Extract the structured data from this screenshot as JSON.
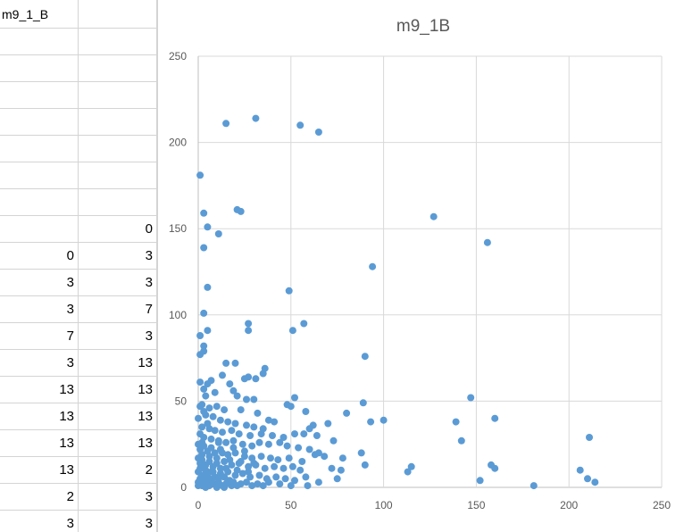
{
  "sheet": {
    "header_a": "m9_1_B",
    "header_b": "",
    "rows": [
      {
        "a": "",
        "b": ""
      },
      {
        "a": "",
        "b": ""
      },
      {
        "a": "",
        "b": ""
      },
      {
        "a": "",
        "b": ""
      },
      {
        "a": "",
        "b": ""
      },
      {
        "a": "",
        "b": ""
      },
      {
        "a": "",
        "b": ""
      },
      {
        "a": "",
        "b": "0"
      },
      {
        "a": "0",
        "b": "3"
      },
      {
        "a": "3",
        "b": "3"
      },
      {
        "a": "3",
        "b": "7"
      },
      {
        "a": "7",
        "b": "3"
      },
      {
        "a": "3",
        "b": "13"
      },
      {
        "a": "13",
        "b": "13"
      },
      {
        "a": "13",
        "b": "13"
      },
      {
        "a": "13",
        "b": "13"
      },
      {
        "a": "13",
        "b": "2"
      },
      {
        "a": "2",
        "b": "3"
      },
      {
        "a": "3",
        "b": "3"
      }
    ]
  },
  "chart_data": {
    "type": "scatter",
    "title": "m9_1B",
    "xlabel": "",
    "ylabel": "",
    "xlim": [
      0,
      250
    ],
    "ylim": [
      0,
      250
    ],
    "xticks": [
      0,
      50,
      100,
      150,
      200,
      250
    ],
    "yticks": [
      0,
      50,
      100,
      150,
      200,
      250
    ],
    "grid": true,
    "legend": "none",
    "marker_color": "#5B9BD5",
    "series": [
      {
        "points": [
          [
            15,
            211
          ],
          [
            31,
            214
          ],
          [
            55,
            210
          ],
          [
            65,
            206
          ],
          [
            1,
            181
          ],
          [
            21,
            161
          ],
          [
            23,
            160
          ],
          [
            3,
            159
          ],
          [
            5,
            151
          ],
          [
            11,
            147
          ],
          [
            3,
            139
          ],
          [
            127,
            157
          ],
          [
            156,
            142
          ],
          [
            94,
            128
          ],
          [
            5,
            116
          ],
          [
            49,
            114
          ],
          [
            3,
            101
          ],
          [
            27,
            95
          ],
          [
            57,
            95
          ],
          [
            27,
            91
          ],
          [
            51,
            91
          ],
          [
            5,
            91
          ],
          [
            1,
            88
          ],
          [
            3,
            82
          ],
          [
            3,
            79
          ],
          [
            1,
            77
          ],
          [
            90,
            76
          ],
          [
            15,
            72
          ],
          [
            20,
            72
          ],
          [
            36,
            69
          ],
          [
            35,
            66
          ],
          [
            13,
            65
          ],
          [
            27,
            64
          ],
          [
            25,
            63
          ],
          [
            31,
            63
          ],
          [
            1,
            61
          ],
          [
            5,
            60
          ],
          [
            7,
            62
          ],
          [
            17,
            60
          ],
          [
            19,
            56
          ],
          [
            3,
            57
          ],
          [
            9,
            55
          ],
          [
            21,
            53
          ],
          [
            147,
            52
          ],
          [
            52,
            52
          ],
          [
            26,
            51
          ],
          [
            30,
            51
          ],
          [
            89,
            49
          ],
          [
            48,
            48
          ],
          [
            50,
            47
          ],
          [
            2,
            48
          ],
          [
            6,
            46
          ],
          [
            10,
            47
          ],
          [
            14,
            45
          ],
          [
            23,
            45
          ],
          [
            32,
            43
          ],
          [
            58,
            44
          ],
          [
            80,
            43
          ],
          [
            160,
            40
          ],
          [
            100,
            39
          ],
          [
            93,
            38
          ],
          [
            139,
            38
          ],
          [
            38,
            39
          ],
          [
            41,
            38
          ],
          [
            62,
            36
          ],
          [
            70,
            37
          ],
          [
            60,
            34
          ],
          [
            4,
            42
          ],
          [
            8,
            41
          ],
          [
            12,
            39
          ],
          [
            16,
            38
          ],
          [
            20,
            37
          ],
          [
            26,
            36
          ],
          [
            30,
            35
          ],
          [
            35,
            34
          ],
          [
            2,
            35
          ],
          [
            6,
            34
          ],
          [
            9,
            33
          ],
          [
            13,
            32
          ],
          [
            18,
            33
          ],
          [
            22,
            31
          ],
          [
            28,
            30
          ],
          [
            34,
            31
          ],
          [
            40,
            30
          ],
          [
            46,
            29
          ],
          [
            52,
            31
          ],
          [
            57,
            31
          ],
          [
            64,
            30
          ],
          [
            211,
            29
          ],
          [
            142,
            27
          ],
          [
            73,
            27
          ],
          [
            3,
            29
          ],
          [
            7,
            28
          ],
          [
            11,
            27
          ],
          [
            15,
            26
          ],
          [
            19,
            27
          ],
          [
            24,
            25
          ],
          [
            29,
            24
          ],
          [
            33,
            26
          ],
          [
            38,
            25
          ],
          [
            44,
            26
          ],
          [
            48,
            24
          ],
          [
            54,
            23
          ],
          [
            60,
            22
          ],
          [
            65,
            20
          ],
          [
            88,
            20
          ],
          [
            78,
            17
          ],
          [
            1,
            22
          ],
          [
            5,
            21
          ],
          [
            9,
            20
          ],
          [
            12,
            22
          ],
          [
            16,
            19
          ],
          [
            20,
            20
          ],
          [
            25,
            18
          ],
          [
            29,
            17
          ],
          [
            34,
            18
          ],
          [
            39,
            17
          ],
          [
            43,
            16
          ],
          [
            49,
            17
          ],
          [
            56,
            15
          ],
          [
            63,
            19
          ],
          [
            68,
            18
          ],
          [
            2,
            16
          ],
          [
            6,
            15
          ],
          [
            10,
            14
          ],
          [
            14,
            15
          ],
          [
            18,
            13
          ],
          [
            22,
            14
          ],
          [
            27,
            12
          ],
          [
            31,
            13
          ],
          [
            36,
            11
          ],
          [
            41,
            12
          ],
          [
            46,
            11
          ],
          [
            51,
            12
          ],
          [
            55,
            10
          ],
          [
            72,
            11
          ],
          [
            77,
            10
          ],
          [
            90,
            13
          ],
          [
            115,
            12
          ],
          [
            113,
            9
          ],
          [
            158,
            13
          ],
          [
            160,
            11
          ],
          [
            206,
            10
          ],
          [
            1,
            11
          ],
          [
            4,
            10
          ],
          [
            8,
            9
          ],
          [
            12,
            8
          ],
          [
            16,
            9
          ],
          [
            20,
            7
          ],
          [
            24,
            8
          ],
          [
            28,
            6
          ],
          [
            33,
            7
          ],
          [
            37,
            5
          ],
          [
            42,
            6
          ],
          [
            47,
            5
          ],
          [
            52,
            4
          ],
          [
            58,
            6
          ],
          [
            65,
            3
          ],
          [
            75,
            5
          ],
          [
            152,
            4
          ],
          [
            210,
            5
          ],
          [
            214,
            3
          ],
          [
            1,
            5
          ],
          [
            3,
            4
          ],
          [
            5,
            3
          ],
          [
            7,
            4
          ],
          [
            9,
            2
          ],
          [
            11,
            3
          ],
          [
            13,
            1
          ],
          [
            15,
            2
          ],
          [
            17,
            4
          ],
          [
            19,
            3
          ],
          [
            21,
            1
          ],
          [
            23,
            2
          ],
          [
            26,
            3
          ],
          [
            29,
            1
          ],
          [
            32,
            2
          ],
          [
            35,
            1
          ],
          [
            38,
            3
          ],
          [
            44,
            2
          ],
          [
            50,
            1
          ],
          [
            59,
            1
          ],
          [
            0,
            1
          ],
          [
            0,
            3
          ],
          [
            2,
            1
          ],
          [
            4,
            0
          ],
          [
            6,
            1
          ],
          [
            8,
            2
          ],
          [
            10,
            0
          ],
          [
            14,
            0
          ],
          [
            18,
            1
          ],
          [
            181,
            1
          ],
          [
            1,
            14
          ],
          [
            2,
            19
          ],
          [
            3,
            24
          ],
          [
            4,
            13
          ],
          [
            6,
            18
          ],
          [
            7,
            23
          ],
          [
            8,
            12
          ],
          [
            10,
            17
          ],
          [
            11,
            26
          ],
          [
            13,
            20
          ],
          [
            15,
            11
          ],
          [
            17,
            16
          ],
          [
            19,
            23
          ],
          [
            21,
            10
          ],
          [
            23,
            15
          ],
          [
            25,
            21
          ],
          [
            27,
            9
          ],
          [
            30,
            14
          ],
          [
            2,
            7
          ],
          [
            5,
            8
          ],
          [
            0,
            9
          ],
          [
            1,
            31
          ],
          [
            2,
            26
          ],
          [
            3,
            44
          ],
          [
            4,
            53
          ],
          [
            5,
            37
          ],
          [
            0,
            17
          ],
          [
            0,
            25
          ],
          [
            0,
            40
          ],
          [
            1,
            47
          ],
          [
            2,
            3
          ],
          [
            3,
            6
          ],
          [
            4,
            2
          ],
          [
            6,
            5
          ],
          [
            7,
            9
          ],
          [
            9,
            6
          ],
          [
            11,
            5
          ],
          [
            12,
            11
          ],
          [
            14,
            6
          ],
          [
            16,
            4
          ]
        ]
      }
    ]
  }
}
